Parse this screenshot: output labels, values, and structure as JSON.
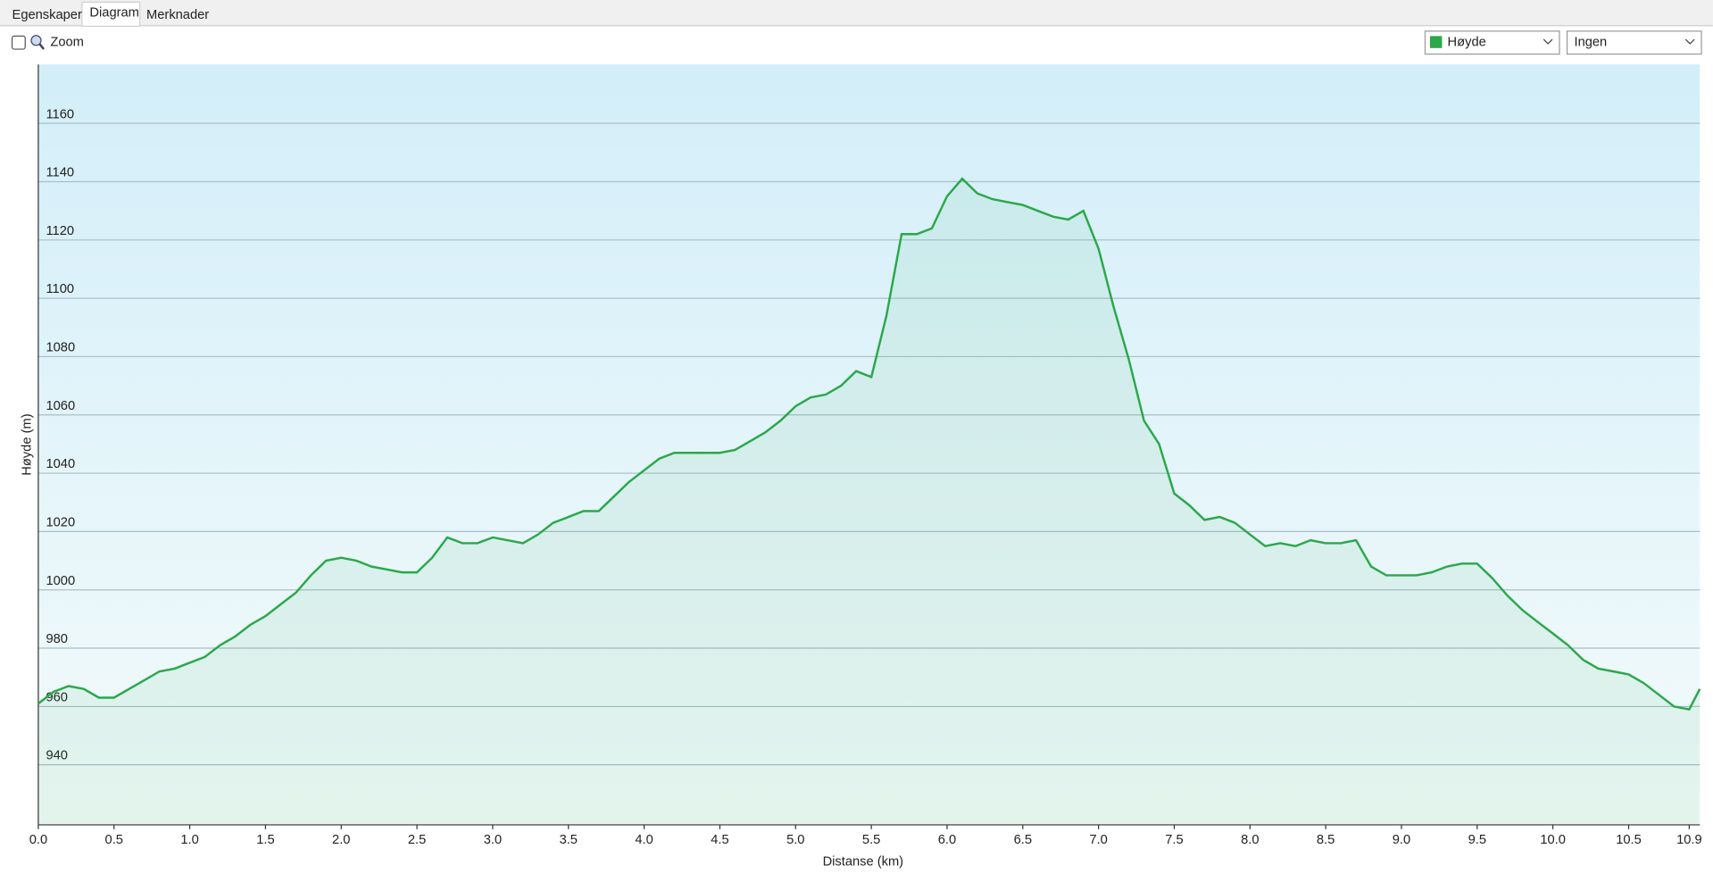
{
  "tabs": [
    "Egenskaper",
    "Diagram",
    "Merknader"
  ],
  "zoom_label": "Zoom",
  "dropdowns": [
    "Høyde",
    "Ingen"
  ],
  "chart_data": {
    "type": "line",
    "x_label": "Distanse  (km)",
    "y_label": "Høyde (m)",
    "x": [
      0.0,
      0.1,
      0.2,
      0.3,
      0.4,
      0.5,
      0.6,
      0.7,
      0.8,
      0.9,
      1.0,
      1.1,
      1.2,
      1.3,
      1.4,
      1.5,
      1.6,
      1.7,
      1.8,
      1.9,
      2.0,
      2.1,
      2.2,
      2.3,
      2.4,
      2.5,
      2.6,
      2.7,
      2.8,
      2.9,
      3.0,
      3.1,
      3.2,
      3.3,
      3.4,
      3.5,
      3.6,
      3.7,
      3.8,
      3.9,
      4.0,
      4.1,
      4.2,
      4.3,
      4.4,
      4.5,
      4.6,
      4.7,
      4.8,
      4.9,
      5.0,
      5.1,
      5.2,
      5.3,
      5.4,
      5.5,
      5.6,
      5.7,
      5.8,
      5.9,
      6.0,
      6.1,
      6.2,
      6.3,
      6.4,
      6.5,
      6.6,
      6.7,
      6.8,
      6.9,
      7.0,
      7.1,
      7.2,
      7.3,
      7.4,
      7.5,
      7.6,
      7.7,
      7.8,
      7.9,
      8.0,
      8.1,
      8.2,
      8.3,
      8.4,
      8.5,
      8.6,
      8.7,
      8.8,
      8.9,
      9.0,
      9.1,
      9.2,
      9.3,
      9.4,
      9.5,
      9.6,
      9.7,
      9.8,
      9.9,
      10.0,
      10.1,
      10.2,
      10.3,
      10.4,
      10.5,
      10.6,
      10.7,
      10.8,
      10.9,
      10.97
    ],
    "series": [
      {
        "name": "Høyde",
        "color": "#2aa84a",
        "values": [
          961,
          965,
          967,
          966,
          963,
          963,
          966,
          969,
          972,
          973,
          975,
          977,
          981,
          984,
          988,
          991,
          995,
          999,
          1005,
          1010,
          1011,
          1010,
          1008,
          1007,
          1006,
          1006,
          1011,
          1018,
          1016,
          1016,
          1018,
          1017,
          1016,
          1019,
          1023,
          1025,
          1027,
          1027,
          1032,
          1037,
          1041,
          1045,
          1047,
          1047,
          1047,
          1047,
          1048,
          1051,
          1054,
          1058,
          1063,
          1066,
          1067,
          1070,
          1075,
          1073,
          1094,
          1122,
          1122,
          1124,
          1135,
          1141,
          1136,
          1134,
          1133,
          1132,
          1130,
          1128,
          1127,
          1130,
          1117,
          1097,
          1079,
          1058,
          1050,
          1033,
          1029,
          1024,
          1025,
          1023,
          1019,
          1015,
          1016,
          1015,
          1017,
          1016,
          1016,
          1017,
          1008,
          1005,
          1005,
          1005,
          1006,
          1008,
          1009,
          1009,
          1004,
          998,
          993,
          989,
          985,
          981,
          976,
          973,
          972,
          971,
          968,
          964,
          960,
          959,
          966
        ]
      }
    ],
    "xlim": [
      0,
      10.97
    ],
    "ylim": [
      919.4,
      1180.2
    ],
    "xticks": [
      {
        "value": 0,
        "label": "0.0"
      },
      {
        "value": 0.5,
        "label": "0.5"
      },
      {
        "value": 1,
        "label": "1.0"
      },
      {
        "value": 1.5,
        "label": "1.5"
      },
      {
        "value": 2,
        "label": "2.0"
      },
      {
        "value": 2.5,
        "label": "2.5"
      },
      {
        "value": 3,
        "label": "3.0"
      },
      {
        "value": 3.5,
        "label": "3.5"
      },
      {
        "value": 4,
        "label": "4.0"
      },
      {
        "value": 4.5,
        "label": "4.5"
      },
      {
        "value": 5,
        "label": "5.0"
      },
      {
        "value": 5.5,
        "label": "5.5"
      },
      {
        "value": 6,
        "label": "6.0"
      },
      {
        "value": 6.5,
        "label": "6.5"
      },
      {
        "value": 7,
        "label": "7.0"
      },
      {
        "value": 7.5,
        "label": "7.5"
      },
      {
        "value": 8,
        "label": "8.0"
      },
      {
        "value": 8.5,
        "label": "8.5"
      },
      {
        "value": 9,
        "label": "9.0"
      },
      {
        "value": 9.5,
        "label": "9.5"
      },
      {
        "value": 10,
        "label": "10.0"
      },
      {
        "value": 10.5,
        "label": "10.5"
      },
      {
        "value": 10.9,
        "label": "10.9"
      }
    ],
    "yticks": [
      940,
      960,
      980,
      1000,
      1020,
      1040,
      1060,
      1080,
      1100,
      1120,
      1140,
      1160
    ],
    "grid": true
  }
}
